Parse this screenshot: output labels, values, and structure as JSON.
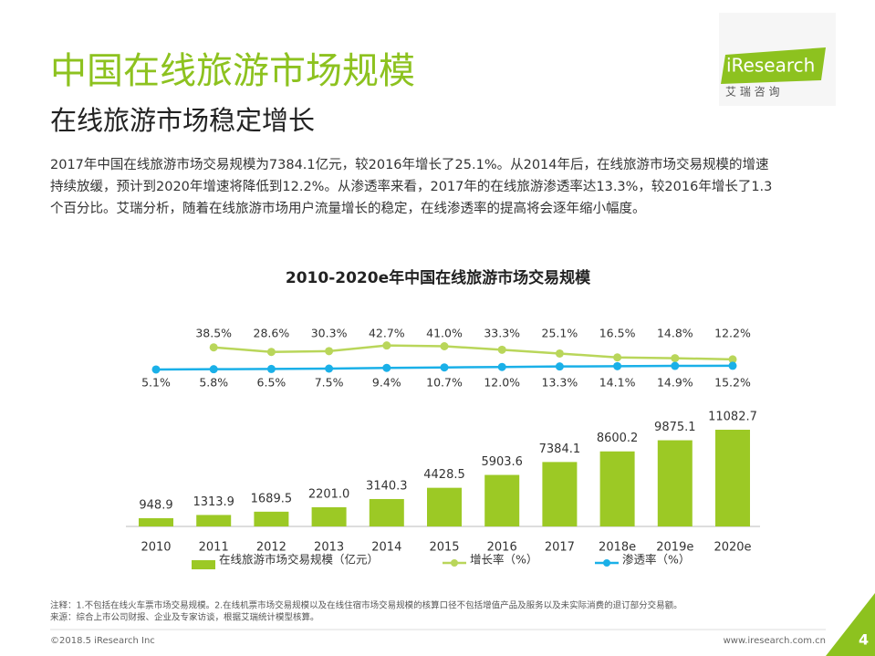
{
  "header": {
    "title": "中国在线旅游市场规模",
    "subtitle": "在线旅游市场稳定增长",
    "logo": "iResearch",
    "logo_cn": "艾 瑞 咨 询"
  },
  "paragraph_lines": [
    "2017年中国在线旅游市场交易规模为7384.1亿元，较2016年增长了25.1%。从2014年后，在线旅游市场交易规模的增速",
    "持续放缓，预计到2020年增速将降低到12.2%。从渗透率来看，2017年的在线旅游渗透率达13.3%，较2016年增长了1.3",
    "个百分比。艾瑞分析，随着在线旅游市场用户流量增长的稳定，在线渗透率的提高将会逐年缩小幅度。"
  ],
  "chart_data": {
    "type": "bar",
    "title": "2010-2020e年中国在线旅游市场交易规模",
    "categories": [
      "2010",
      "2011",
      "2012",
      "2013",
      "2014",
      "2015",
      "2016",
      "2017",
      "2018e",
      "2019e",
      "2020e"
    ],
    "series": [
      {
        "name": "在线旅游市场交易规模（亿元）",
        "type": "bar",
        "color": "#9cc925",
        "values": [
          948.9,
          1313.9,
          1689.5,
          2201.0,
          3140.3,
          4428.5,
          5903.6,
          7384.1,
          8600.2,
          9875.1,
          11082.7
        ],
        "value_labels": [
          "948.9",
          "1313.9",
          "1689.5",
          "2201.0",
          "3140.3",
          "4428.5",
          "5903.6",
          "7384.1",
          "8600.2",
          "9875.1",
          "11082.7"
        ]
      },
      {
        "name": "增长率（%）",
        "type": "line",
        "color": "#b9d65a",
        "values": [
          null,
          38.5,
          28.6,
          30.3,
          42.7,
          41.0,
          33.3,
          25.1,
          16.5,
          14.8,
          12.2
        ],
        "value_labels": [
          null,
          "38.5%",
          "28.6%",
          "30.3%",
          "42.7%",
          "41.0%",
          "33.3%",
          "25.1%",
          "16.5%",
          "14.8%",
          "12.2%"
        ]
      },
      {
        "name": "渗透率（%）",
        "type": "line",
        "color": "#1ab0e8",
        "values": [
          5.1,
          5.8,
          6.5,
          7.5,
          9.4,
          10.7,
          12.0,
          13.3,
          14.1,
          14.9,
          15.2
        ],
        "value_labels": [
          "5.1%",
          "5.8%",
          "6.5%",
          "7.5%",
          "9.4%",
          "10.7%",
          "12.0%",
          "13.3%",
          "14.1%",
          "14.9%",
          "15.2%"
        ]
      }
    ]
  },
  "notes": [
    "注释：1.不包括在线火车票市场交易规模。2.在线机票市场交易规模以及在线住宿市场交易规模的核算口径不包括增值产品及服务以及未实际消费的退订部分交易额。",
    "来源：综合上市公司财报、企业及专家访谈，根据艾瑞统计模型核算。"
  ],
  "footer": {
    "copyright": "©2018.5 iResearch Inc",
    "url": "www.iresearch.com.cn",
    "page": "4"
  }
}
